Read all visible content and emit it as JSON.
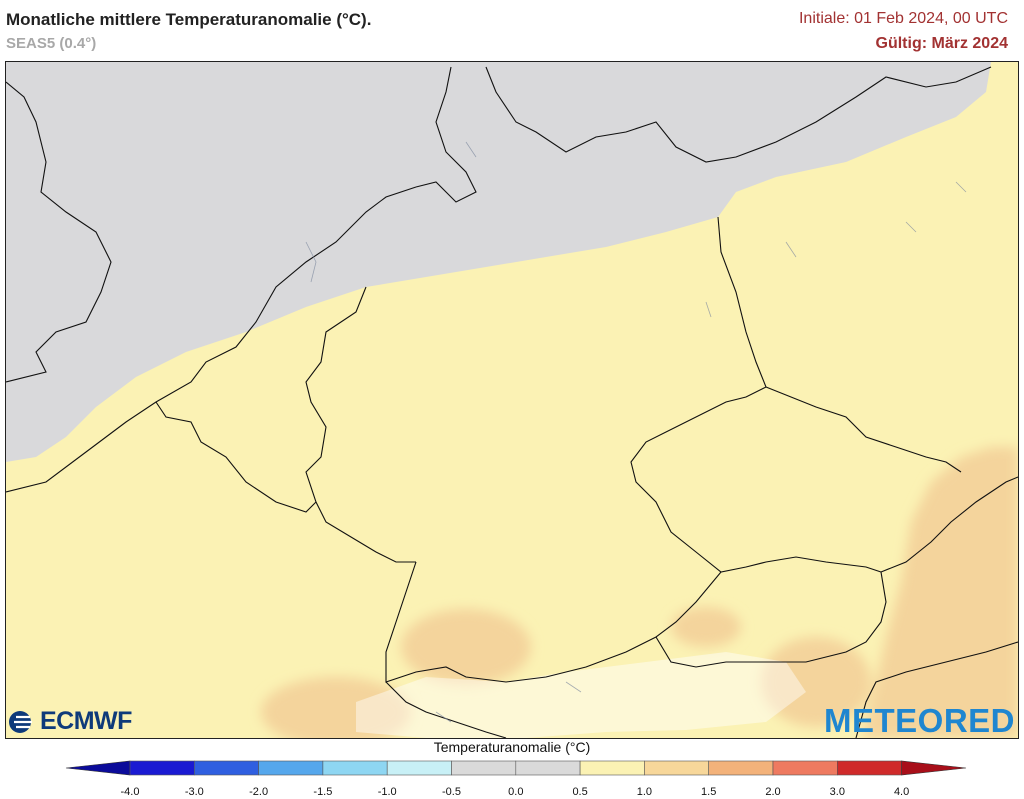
{
  "header": {
    "title": "Monatliche mittlere Temperaturanomalie (°C).",
    "subtitle": "SEAS5 (0.4°)",
    "init": "Initiale: 01 Feb 2024, 00 UTC",
    "valid": "Gültig: März 2024"
  },
  "logos": {
    "ecmwf": "ECMWF",
    "meteored": "METEORED"
  },
  "legend": {
    "title": "Temperaturanomalie (°C)",
    "ticks": [
      "-4.0",
      "-3.0",
      "-2.0",
      "-1.5",
      "-1.0",
      "-0.5",
      "0.0",
      "0.5",
      "1.0",
      "1.5",
      "2.0",
      "3.0",
      "4.0"
    ],
    "colors": [
      "#1a1ad2",
      "#2f5fe0",
      "#55a7ec",
      "#8ed6f2",
      "#c8f0f6",
      "#dadada",
      "#dadada",
      "#fbf2b4",
      "#f7d79a",
      "#f3b27a",
      "#ee7a60",
      "#cf2a2a"
    ],
    "low_color": "#0b0b9a",
    "high_color": "#a80f1a"
  },
  "map": {
    "colors": {
      "sea_gray": "#d9d9db",
      "land_yellow": "#fbf2b4",
      "warm_orange": "#f4d49c",
      "border": "#111111"
    }
  }
}
